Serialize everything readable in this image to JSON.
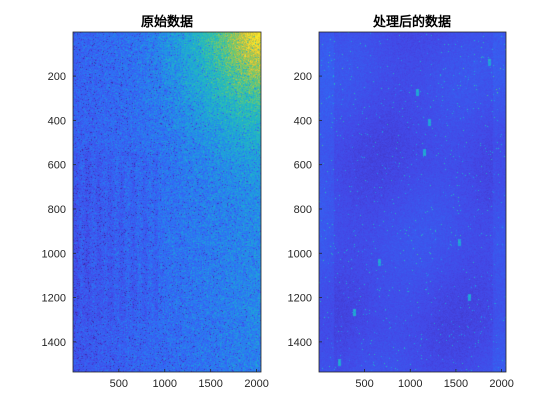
{
  "chart_data": [
    {
      "type": "heatmap",
      "title": "原始数据",
      "xlim": [
        1,
        2048
      ],
      "ylim": [
        1,
        1536
      ],
      "y_direction": "reversed",
      "xticks": [
        500,
        1000,
        1500,
        2000
      ],
      "yticks": [
        200,
        400,
        600,
        800,
        1000,
        1200,
        1400
      ],
      "colormap": "parula",
      "pattern": "noisy blue field brightening toward green/yellow in the upper-right corner"
    },
    {
      "type": "heatmap",
      "title": "处理后的数据",
      "xlim": [
        1,
        2048
      ],
      "ylim": [
        1,
        1536
      ],
      "y_direction": "reversed",
      "xticks": [
        500,
        1000,
        1500,
        2000
      ],
      "yticks": [
        200,
        400,
        600,
        800,
        1000,
        1200,
        1400
      ],
      "colormap": "parula",
      "pattern": "mostly uniform dark blue with sparse bright speckles"
    }
  ],
  "colors": {
    "axis": "#262626",
    "parula_dark": "#3e26a8",
    "parula_blue": "#2f62f0",
    "parula_cyan": "#1fb1d0",
    "parula_green": "#76c868",
    "parula_yellow": "#f8e62a"
  }
}
